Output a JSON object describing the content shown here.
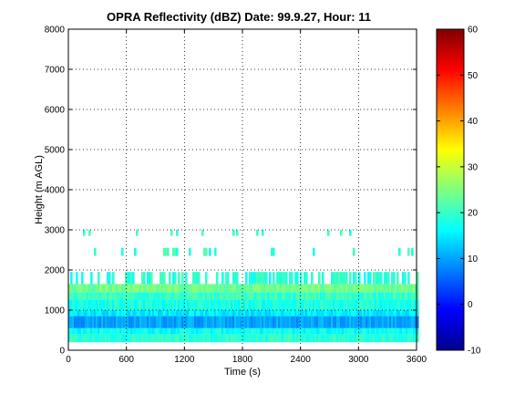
{
  "chart_data": {
    "type": "heatmap",
    "title": "OPRA Reflectivity (dBZ)  Date: 99.9.27, Hour: 11",
    "xlabel": "Time (s)",
    "ylabel": "Height (m AGL)",
    "xlim": [
      0,
      3600
    ],
    "ylim": [
      0,
      8000
    ],
    "x_ticks": [
      "0",
      "600",
      "1200",
      "1800",
      "2400",
      "3000",
      "3600"
    ],
    "y_ticks": [
      "0",
      "1000",
      "2000",
      "3000",
      "4000",
      "5000",
      "6000",
      "7000",
      "8000"
    ],
    "grid": true,
    "colormap": "jet",
    "colorbar": {
      "range": [
        -10,
        60
      ],
      "ticks": [
        "-10",
        "0",
        "10",
        "20",
        "30",
        "40",
        "50",
        "60"
      ]
    },
    "height_layers": [
      {
        "height_range": [
          200,
          400
        ],
        "dbz": 19
      },
      {
        "height_range": [
          400,
          550
        ],
        "dbz": 17
      },
      {
        "height_range": [
          550,
          850
        ],
        "dbz": 10
      },
      {
        "height_range": [
          850,
          1000
        ],
        "dbz": 15
      },
      {
        "height_range": [
          1000,
          1250
        ],
        "dbz": 18
      },
      {
        "height_range": [
          1250,
          1450
        ],
        "dbz": 20
      },
      {
        "height_range": [
          1450,
          1650
        ],
        "dbz": 24
      },
      {
        "height_range": [
          1650,
          1950
        ],
        "dbz": 19,
        "coverage": "broken"
      },
      {
        "height_range": [
          2350,
          2550
        ],
        "dbz": 20,
        "coverage": "isolated"
      },
      {
        "height_range": [
          2850,
          3000
        ],
        "dbz": 20,
        "coverage": "sparse"
      }
    ]
  }
}
